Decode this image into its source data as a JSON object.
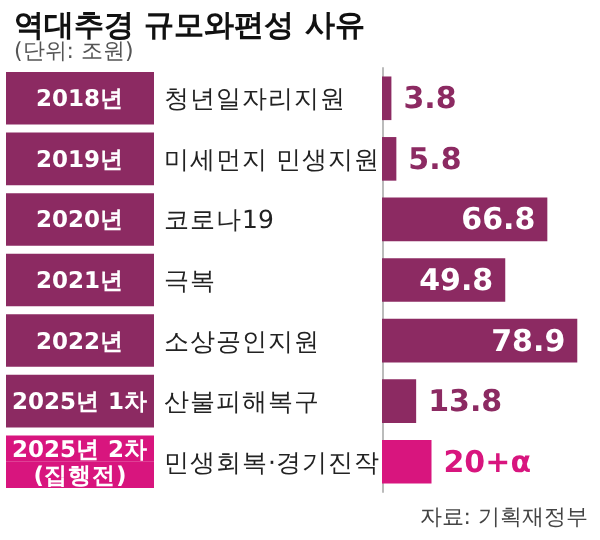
{
  "chart_data": {
    "type": "bar",
    "orientation": "horizontal",
    "title": "역대추경 규모와편성 사유",
    "subtitle": "(단위: 조원)",
    "categories": [
      "2018년",
      "2019년",
      "2020년",
      "2021년",
      "2022년",
      "2025년 1차",
      "2025년 2차\n(집행전)"
    ],
    "values": [
      3.8,
      5.8,
      66.8,
      49.8,
      78.9,
      13.8,
      20
    ],
    "value_labels": [
      "3.8",
      "5.8",
      "66.8",
      "49.8",
      "78.9",
      "13.8",
      "20+α"
    ],
    "colors": [
      "#8c2a62",
      "#8c2a62",
      "#8c2a62",
      "#8c2a62",
      "#8c2a62",
      "#8c2a62",
      "#d8157e"
    ],
    "annotations": [
      "청년일자리지원",
      "미세먼지 민생지원",
      "코로나19\n극복",
      "소상공인지원",
      "산불피해복구",
      "민생회복·경기진작",
      "자료: 기획재정부"
    ]
  }
}
